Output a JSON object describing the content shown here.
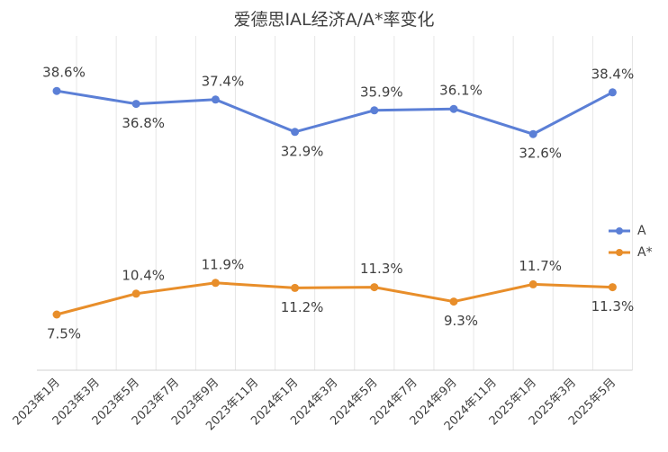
{
  "chart_data": {
    "type": "line",
    "title": "爱德思IAL经济A/A*率变化",
    "categories": [
      "2023年1月",
      "2023年3月",
      "2023年5月",
      "2023年7月",
      "2023年9月",
      "2023年11月",
      "2024年1月",
      "2024年3月",
      "2024年5月",
      "2024年7月",
      "2024年9月",
      "2024年11月",
      "2025年1月",
      "2025年3月",
      "2025年5月"
    ],
    "series": [
      {
        "name": "A",
        "color": "#5b7fd6",
        "values": [
          38.6,
          null,
          36.8,
          null,
          37.4,
          null,
          32.9,
          null,
          35.9,
          null,
          36.1,
          null,
          32.6,
          null,
          38.4
        ],
        "value_labels": [
          "38.6%",
          null,
          "36.8%",
          null,
          "37.4%",
          null,
          "32.9%",
          null,
          "35.9%",
          null,
          "36.1%",
          null,
          "32.6%",
          null,
          "38.4%"
        ]
      },
      {
        "name": "A*",
        "color": "#e88e2a",
        "values": [
          7.5,
          null,
          10.4,
          null,
          11.9,
          null,
          11.2,
          null,
          11.3,
          null,
          9.3,
          null,
          11.7,
          null,
          11.3
        ],
        "value_labels": [
          "7.5%",
          null,
          "10.4%",
          null,
          "11.9%",
          null,
          "11.2%",
          null,
          "11.3%",
          null,
          "9.3%",
          null,
          "11.7%",
          null,
          "11.3%"
        ]
      }
    ],
    "ylim": [
      0,
      45
    ],
    "grid": true,
    "legend": "right"
  }
}
